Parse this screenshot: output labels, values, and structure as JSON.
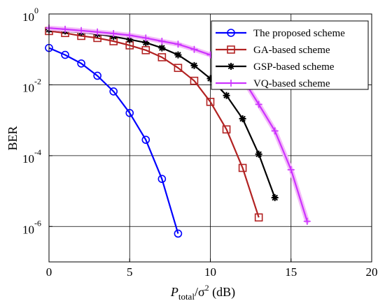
{
  "chart_data": {
    "type": "line",
    "title": "",
    "xlabel_main": "P",
    "xlabel_sub": "total",
    "xlabel_rest": "/σ",
    "xlabel_sup": "2",
    "xlabel_unit": " (dB)",
    "ylabel": "BER",
    "xlim": [
      0,
      20
    ],
    "ylim": [
      1e-07,
      1
    ],
    "yscale": "log",
    "grid": true,
    "legend_position": "top-right",
    "x_ticks": [
      "0",
      "5",
      "10",
      "15",
      "20"
    ],
    "y_ticks": [
      {
        "base": "10",
        "exp": "0"
      },
      {
        "base": "10",
        "exp": "-2"
      },
      {
        "base": "10",
        "exp": "-4"
      },
      {
        "base": "10",
        "exp": "-6"
      }
    ],
    "series": [
      {
        "name": "The proposed scheme",
        "color": "#0000ff",
        "marker": "circle",
        "x": [
          0,
          1,
          2,
          3,
          4,
          5,
          6,
          7,
          8
        ],
        "y": [
          0.11,
          0.07,
          0.04,
          0.018,
          0.0065,
          0.0016,
          0.00028,
          2.2e-05,
          6.3e-07
        ]
      },
      {
        "name": "GA-based scheme",
        "color": "#b22222",
        "marker": "square",
        "x": [
          0,
          1,
          2,
          3,
          4,
          5,
          6,
          7,
          8,
          9,
          10,
          11,
          12,
          13
        ],
        "y": [
          0.33,
          0.29,
          0.24,
          0.21,
          0.17,
          0.13,
          0.095,
          0.06,
          0.03,
          0.013,
          0.0033,
          0.00055,
          4.5e-05,
          1.8e-06
        ]
      },
      {
        "name": "GSP-based scheme",
        "color": "#000000",
        "marker": "asterisk",
        "x": [
          0,
          1,
          2,
          3,
          4,
          5,
          6,
          7,
          8,
          9,
          10,
          11,
          12,
          13,
          14
        ],
        "y": [
          0.36,
          0.33,
          0.3,
          0.27,
          0.23,
          0.19,
          0.155,
          0.11,
          0.07,
          0.035,
          0.015,
          0.005,
          0.0011,
          0.00011,
          6.5e-06
        ]
      },
      {
        "name": "VQ-based scheme",
        "color": "#cc33ff",
        "marker": "plus",
        "x": [
          0,
          1,
          2,
          3,
          4,
          5,
          6,
          7,
          8,
          9,
          10,
          11,
          12,
          13,
          14,
          15,
          16
        ],
        "y": [
          0.4,
          0.37,
          0.34,
          0.31,
          0.28,
          0.25,
          0.21,
          0.17,
          0.14,
          0.1,
          0.07,
          0.038,
          0.015,
          0.0028,
          0.0005,
          4e-05,
          1.4e-06
        ]
      }
    ]
  }
}
